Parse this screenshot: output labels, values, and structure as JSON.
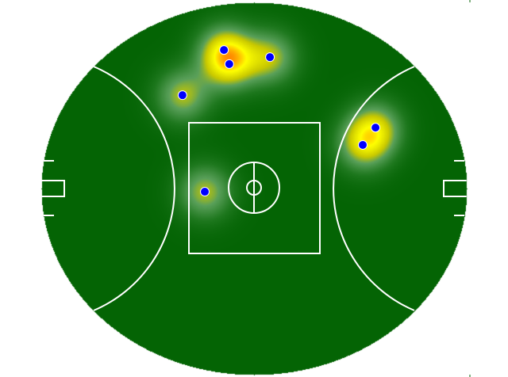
{
  "chart_data": {
    "type": "heatmap",
    "title": "",
    "xlabel": "",
    "ylabel": "",
    "xlim": [
      -80,
      80
    ],
    "ylim": [
      -70,
      70
    ],
    "grid": false,
    "background": "AFL oval field",
    "colors": {
      "field": "#046404",
      "lines": "#ffffff",
      "points": "#0000ff",
      "heat_low": "#5aa05a",
      "heat_mid": "#ffff00",
      "heat_high": "#ff0000"
    },
    "points": [
      {
        "x": -11.3,
        "y": 52.1
      },
      {
        "x": -9.3,
        "y": 46.8
      },
      {
        "x": 6.0,
        "y": 49.4
      },
      {
        "x": -26.9,
        "y": 35.1
      },
      {
        "x": 45.7,
        "y": 22.9
      },
      {
        "x": 40.9,
        "y": 16.4
      },
      {
        "x": -18.5,
        "y": -1.2
      }
    ]
  }
}
